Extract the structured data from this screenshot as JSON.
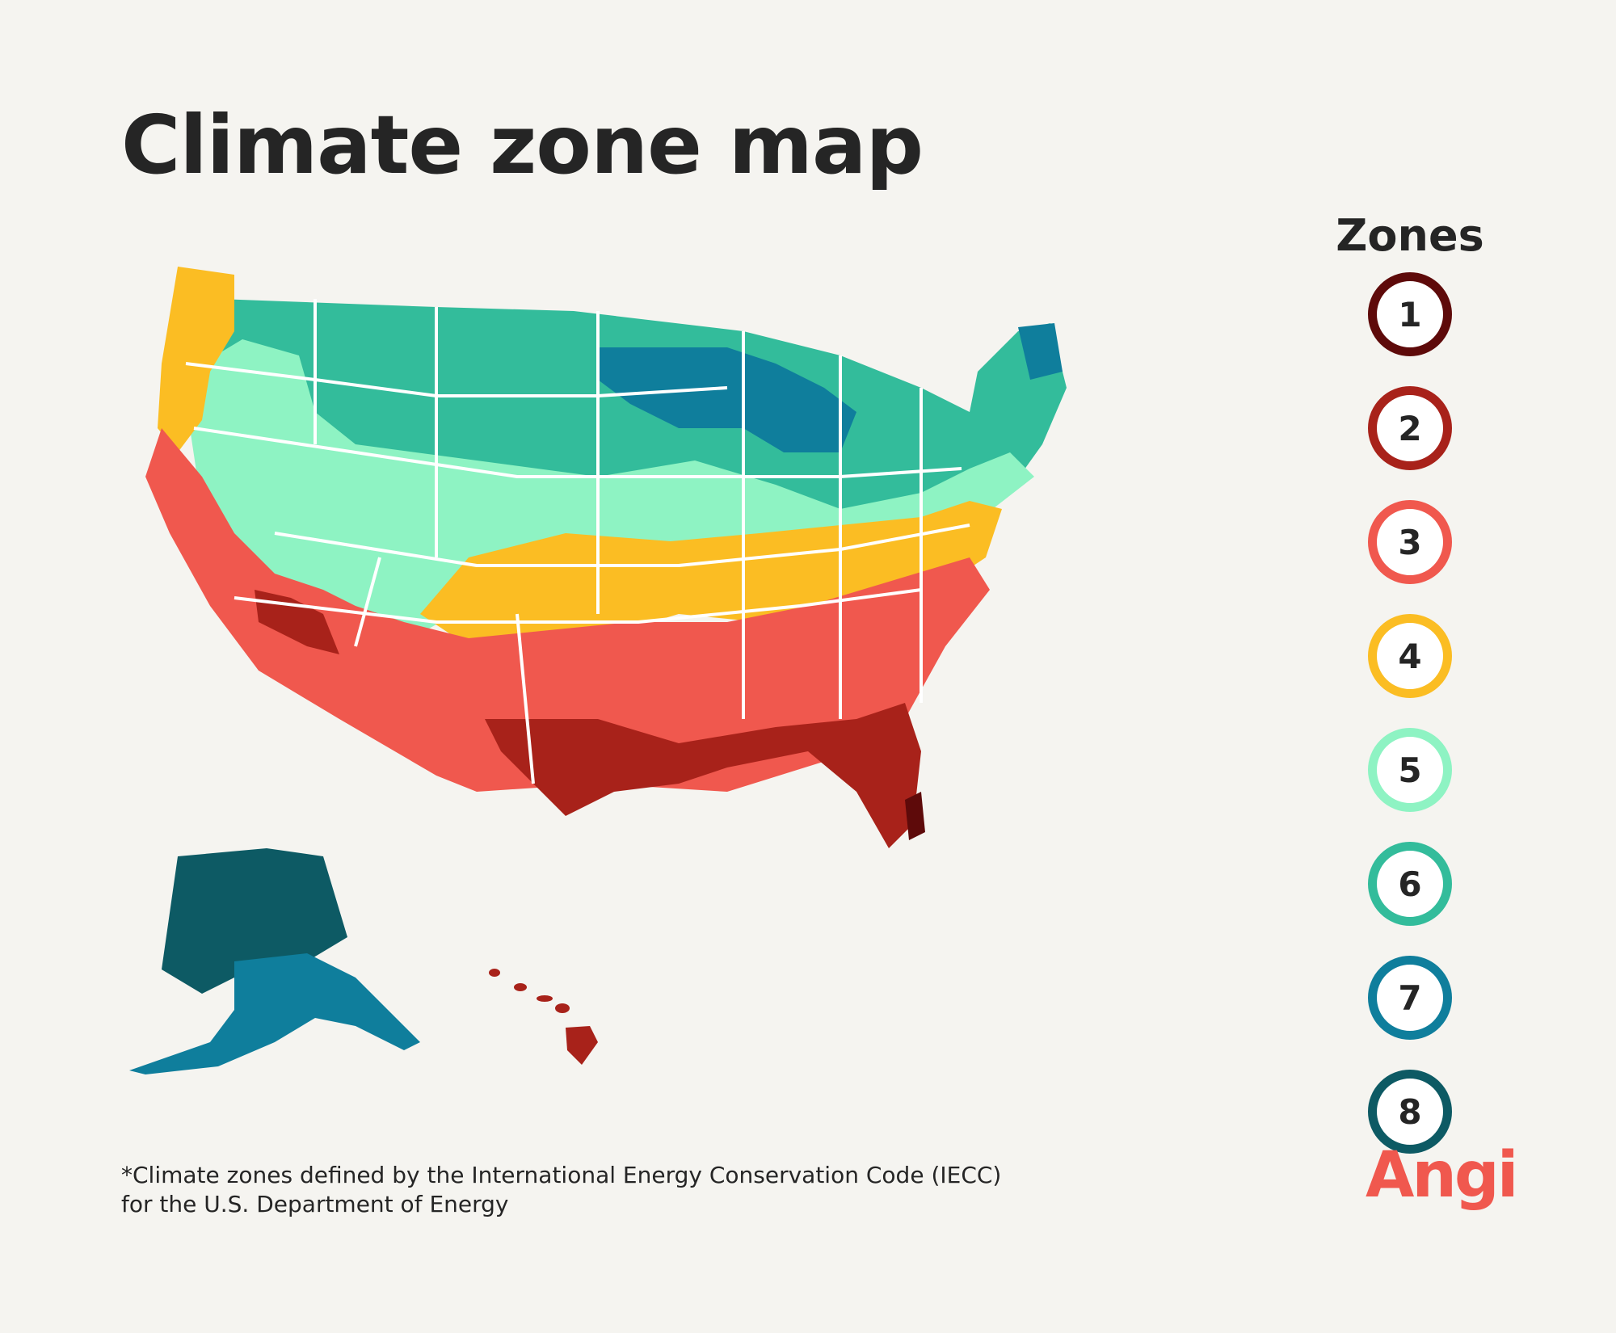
{
  "header": {
    "title": "Climate zone map"
  },
  "legend": {
    "title": "Zones",
    "zones": [
      {
        "label": "1",
        "color": "#5e0a0a"
      },
      {
        "label": "2",
        "color": "#a8221a"
      },
      {
        "label": "3",
        "color": "#f0584e"
      },
      {
        "label": "4",
        "color": "#fbbd23"
      },
      {
        "label": "5",
        "color": "#8ef3c3"
      },
      {
        "label": "6",
        "color": "#33bc9b"
      },
      {
        "label": "7",
        "color": "#0f7e9c"
      },
      {
        "label": "8",
        "color": "#0d5a64"
      }
    ]
  },
  "footnote": {
    "line1": "*Climate zones defined by the International Energy Conservation Code (IECC)",
    "line2": "for the U.S. Department of Energy"
  },
  "brand": {
    "name": "Angi",
    "color": "#f0584e"
  }
}
